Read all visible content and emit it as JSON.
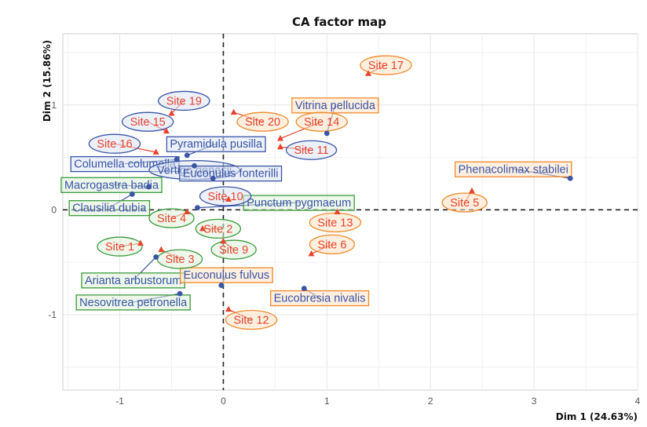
{
  "chart_data": {
    "type": "scatter",
    "title": "CA factor map",
    "xlabel": "Dim 1 (24.63%)",
    "ylabel": "Dim 2 (15.86%)",
    "xlim": [
      -1.55,
      4.0
    ],
    "ylim": [
      -1.72,
      1.68
    ],
    "x_ticks": [
      "-1",
      "0",
      "1",
      "2",
      "3",
      "4"
    ],
    "y_ticks": [
      "1",
      "0",
      "-1"
    ],
    "grid": true,
    "reference_lines": "dashed at x=0 and y=0",
    "colors": {
      "rows": "#e8432d",
      "columns": "#3a55a6",
      "box_red": "#e8432d",
      "box_blue": "#3a55a6",
      "box_green": "#3c9a3c",
      "box_orange": "#f08a2c",
      "fill_green": "#dff0d8",
      "fill_orange": "#fde2c5",
      "fill_blue": "#dde3f3"
    },
    "rows": [
      {
        "name": "Site 17",
        "x": 1.4,
        "y": 1.3,
        "box": "orange",
        "shape": "ellipse",
        "lx": 1.57,
        "ly": 1.38
      },
      {
        "name": "Site 19",
        "x": -0.5,
        "y": 0.92,
        "box": "blue",
        "shape": "ellipse",
        "lx": -0.38,
        "ly": 1.04
      },
      {
        "name": "Site 15",
        "x": -0.55,
        "y": 0.75,
        "box": "blue",
        "shape": "ellipse",
        "lx": -0.73,
        "ly": 0.84
      },
      {
        "name": "Site 20",
        "x": 0.1,
        "y": 0.93,
        "box": "orange",
        "shape": "ellipse",
        "lx": 0.38,
        "ly": 0.84
      },
      {
        "name": "Site 14",
        "x": 0.55,
        "y": 0.68,
        "box": "orange",
        "shape": "ellipse",
        "lx": 0.95,
        "ly": 0.84
      },
      {
        "name": "Site 16",
        "x": -0.65,
        "y": 0.55,
        "box": "blue",
        "shape": "ellipse",
        "lx": -1.05,
        "ly": 0.63
      },
      {
        "name": "Site 11",
        "x": 0.55,
        "y": 0.6,
        "box": "blue",
        "shape": "ellipse",
        "lx": 0.85,
        "ly": 0.57
      },
      {
        "name": "Site 10",
        "x": 0.05,
        "y": 0.1,
        "box": "blue",
        "shape": "ellipse",
        "lx": 0.02,
        "ly": 0.13
      },
      {
        "name": "Site 5",
        "x": 2.4,
        "y": 0.18,
        "box": "orange",
        "shape": "ellipse",
        "lx": 2.33,
        "ly": 0.07
      },
      {
        "name": "Site 4",
        "x": -0.35,
        "y": -0.02,
        "box": "green",
        "shape": "ellipse",
        "lx": -0.5,
        "ly": -0.08
      },
      {
        "name": "Site 13",
        "x": 1.1,
        "y": -0.02,
        "box": "orange",
        "shape": "ellipse",
        "lx": 1.08,
        "ly": -0.12
      },
      {
        "name": "Site 2",
        "x": -0.2,
        "y": -0.18,
        "box": "green",
        "shape": "ellipse",
        "lx": -0.05,
        "ly": -0.18
      },
      {
        "name": "Site 1",
        "x": -0.8,
        "y": -0.32,
        "box": "green",
        "shape": "ellipse",
        "lx": -1.0,
        "ly": -0.35
      },
      {
        "name": "Site 6",
        "x": 0.85,
        "y": -0.42,
        "box": "orange",
        "shape": "ellipse",
        "lx": 1.05,
        "ly": -0.33
      },
      {
        "name": "Site 9",
        "x": 0.0,
        "y": -0.3,
        "box": "green",
        "shape": "ellipse",
        "lx": 0.1,
        "ly": -0.38
      },
      {
        "name": "Site 3",
        "x": -0.6,
        "y": -0.38,
        "box": "green",
        "shape": "ellipse",
        "lx": -0.42,
        "ly": -0.47
      },
      {
        "name": "Site 12",
        "x": 0.05,
        "y": -0.95,
        "box": "orange",
        "shape": "ellipse",
        "lx": 0.27,
        "ly": -1.05
      }
    ],
    "columns": [
      {
        "name": "Vitrina pellucida",
        "x": 1.0,
        "y": 0.73,
        "box": "orange",
        "shape": "rect",
        "lx": 1.08,
        "ly": 1.0
      },
      {
        "name": "Pyramidula pusilla",
        "x": -0.35,
        "y": 0.52,
        "box": "blue",
        "shape": "rect",
        "lx": -0.07,
        "ly": 0.63
      },
      {
        "name": "Columella columella",
        "x": -0.45,
        "y": 0.48,
        "box": "blue",
        "shape": "rect",
        "lx": -0.95,
        "ly": 0.44
      },
      {
        "name": "Vertigo genesii",
        "x": -0.28,
        "y": 0.42,
        "box": "blue",
        "shape": "ellipse",
        "lx": -0.28,
        "ly": 0.38
      },
      {
        "name": "Euconulus fonterilli",
        "x": -0.1,
        "y": 0.3,
        "box": "blue",
        "shape": "rect",
        "lx": 0.07,
        "ly": 0.35
      },
      {
        "name": "Phenacolimax stabilei",
        "x": 3.35,
        "y": 0.3,
        "box": "orange",
        "shape": "rect",
        "lx": 2.8,
        "ly": 0.39
      },
      {
        "name": "Macrogastra badia",
        "x": -0.72,
        "y": 0.22,
        "box": "green",
        "shape": "rect",
        "lx": -1.08,
        "ly": 0.24
      },
      {
        "name": "Clausilia dubia",
        "x": -0.88,
        "y": 0.15,
        "box": "green",
        "shape": "rect",
        "lx": -1.1,
        "ly": 0.02
      },
      {
        "name": "Punctum pygmaeum",
        "x": -0.25,
        "y": 0.02,
        "box": "green",
        "shape": "rect",
        "lx": 0.73,
        "ly": 0.07
      },
      {
        "name": "Arianta arbustorum",
        "x": -0.65,
        "y": -0.45,
        "box": "green",
        "shape": "rect",
        "lx": -0.87,
        "ly": -0.67
      },
      {
        "name": "Nesovitrea petronella",
        "x": -0.42,
        "y": -0.8,
        "box": "green",
        "shape": "rect",
        "lx": -0.87,
        "ly": -0.88
      },
      {
        "name": "Euconulus fulvus",
        "x": -0.02,
        "y": -0.72,
        "box": "orange",
        "shape": "rect",
        "lx": 0.03,
        "ly": -0.62
      },
      {
        "name": "Eucobresia nivalis",
        "x": 0.78,
        "y": -0.75,
        "box": "orange",
        "shape": "rect",
        "lx": 0.93,
        "ly": -0.84
      }
    ]
  }
}
